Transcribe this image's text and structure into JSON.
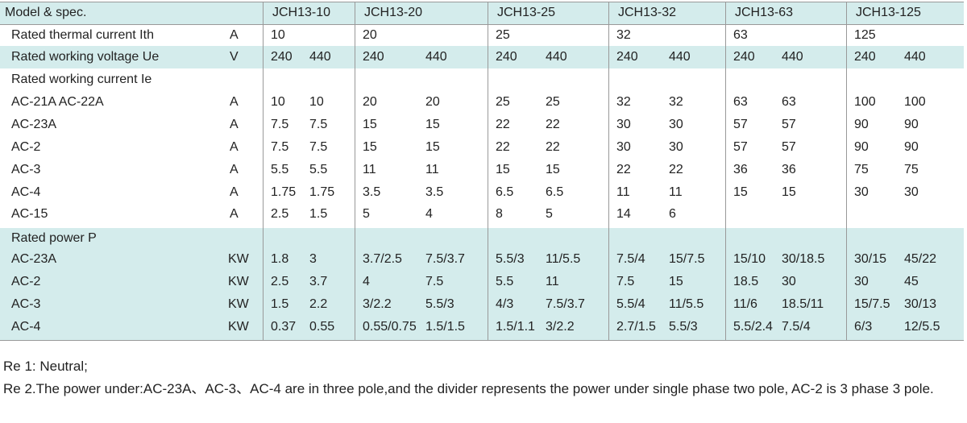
{
  "header": {
    "label": "Model & spec.",
    "models": [
      "JCH13-10",
      "JCH13-20",
      "JCH13-25",
      "JCH13-32",
      "JCH13-63",
      "JCH13-125"
    ]
  },
  "rows": [
    {
      "label": "Rated thermal current Ith",
      "unit": "A",
      "values": [
        "10",
        "20",
        "25",
        "32",
        "63",
        "125"
      ]
    },
    {
      "label": "Rated working voltage Ue",
      "unit": "V",
      "values": [
        [
          "240",
          "440"
        ],
        [
          "240",
          "440"
        ],
        [
          "240",
          "440"
        ],
        [
          "240",
          "440"
        ],
        [
          "240",
          "440"
        ],
        [
          "240",
          "440"
        ]
      ]
    },
    {
      "label": "Rated working current Ie"
    },
    {
      "label": "AC-21A  AC-22A",
      "unit": "A",
      "values": [
        [
          "10",
          "10"
        ],
        [
          "20",
          "20"
        ],
        [
          "25",
          "25"
        ],
        [
          "32",
          "32"
        ],
        [
          "63",
          "63"
        ],
        [
          "100",
          "100"
        ]
      ]
    },
    {
      "label": "AC-23A",
      "unit": "A",
      "values": [
        [
          "7.5",
          "7.5"
        ],
        [
          "15",
          "15"
        ],
        [
          "22",
          "22"
        ],
        [
          "30",
          "30"
        ],
        [
          "57",
          "57"
        ],
        [
          "90",
          "90"
        ]
      ]
    },
    {
      "label": "AC-2",
      "unit": "A",
      "values": [
        [
          "7.5",
          "7.5"
        ],
        [
          "15",
          "15"
        ],
        [
          "22",
          "22"
        ],
        [
          "30",
          "30"
        ],
        [
          "57",
          "57"
        ],
        [
          "90",
          "90"
        ]
      ]
    },
    {
      "label": "AC-3",
      "unit": "A",
      "values": [
        [
          "5.5",
          "5.5"
        ],
        [
          "11",
          "11"
        ],
        [
          "15",
          "15"
        ],
        [
          "22",
          "22"
        ],
        [
          "36",
          "36"
        ],
        [
          "75",
          "75"
        ]
      ]
    },
    {
      "label": "AC-4",
      "unit": "A",
      "values": [
        [
          "1.75",
          "1.75"
        ],
        [
          "3.5",
          "3.5"
        ],
        [
          "6.5",
          "6.5"
        ],
        [
          "11",
          "11"
        ],
        [
          "15",
          "15"
        ],
        [
          "30",
          "30"
        ]
      ]
    },
    {
      "label": "AC-15",
      "unit": "A",
      "values": [
        [
          "2.5",
          "1.5"
        ],
        [
          "5",
          "4"
        ],
        [
          "8",
          "5"
        ],
        [
          "14",
          "6"
        ]
      ]
    },
    {
      "label": "Rated power P"
    },
    {
      "label": "AC-23A",
      "unit": "KW",
      "values": [
        [
          "1.8",
          "3"
        ],
        [
          "3.7/2.5",
          "7.5/3.7"
        ],
        [
          "5.5/3",
          "11/5.5"
        ],
        [
          "7.5/4",
          "15/7.5"
        ],
        [
          "15/10",
          "30/18.5"
        ],
        [
          "30/15",
          "45/22"
        ]
      ]
    },
    {
      "label": "AC-2",
      "unit": "KW",
      "values": [
        [
          "2.5",
          "3.7"
        ],
        [
          "4",
          "7.5"
        ],
        [
          "5.5",
          "11"
        ],
        [
          "7.5",
          "15"
        ],
        [
          "18.5",
          "30"
        ],
        [
          "30",
          "45"
        ]
      ]
    },
    {
      "label": "AC-3",
      "unit": "KW",
      "values": [
        [
          "1.5",
          "2.2"
        ],
        [
          "3/2.2",
          "5.5/3"
        ],
        [
          "4/3",
          "7.5/3.7"
        ],
        [
          "5.5/4",
          "11/5.5"
        ],
        [
          "11/6",
          "18.5/11"
        ],
        [
          "15/7.5",
          "30/13"
        ]
      ]
    },
    {
      "label": "AC-4",
      "unit": "KW",
      "values": [
        [
          "0.37",
          "0.55"
        ],
        [
          "0.55/0.75",
          "1.5/1.5"
        ],
        [
          "1.5/1.1",
          "3/2.2"
        ],
        [
          "2.7/1.5",
          "5.5/3"
        ],
        [
          "5.5/2.4",
          "7.5/4"
        ],
        [
          "6/3",
          "12/5.5"
        ]
      ]
    }
  ],
  "notes": [
    "Re 1: Neutral;",
    "Re 2.The power under:AC-23A、AC-3、AC-4 are in three pole,and the divider represents the power under single phase two pole, AC-2 is 3 phase 3 pole."
  ]
}
